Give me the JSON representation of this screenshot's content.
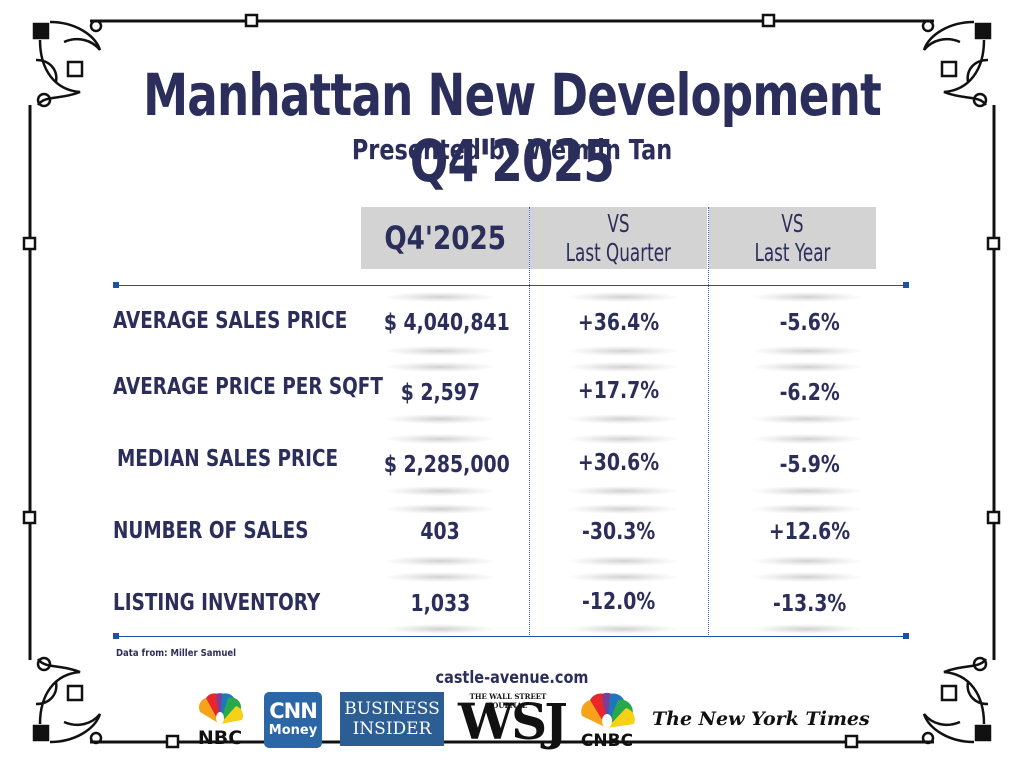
{
  "title": "Manhattan New Development Q4'2025",
  "subtitle": "Presented by Weimin Tan",
  "table": {
    "headers": {
      "current": "Q4'2025",
      "vs_quarter_line1": "VS",
      "vs_quarter_line2": "Last Quarter",
      "vs_year_line1": "VS",
      "vs_year_line2": "Last Year"
    },
    "rows": [
      {
        "label": "AVERAGE SALES PRICE",
        "value": "$ 4,040,841",
        "vs_quarter": "+36.4%",
        "vs_year": "-5.6%"
      },
      {
        "label": "AVERAGE PRICE PER SQFT",
        "value": "$ 2,597",
        "vs_quarter": "+17.7%",
        "vs_year": "-6.2%"
      },
      {
        "label": "MEDIAN SALES PRICE",
        "value": "$ 2,285,000",
        "vs_quarter": "+30.6%",
        "vs_year": "-5.9%"
      },
      {
        "label": "NUMBER OF SALES",
        "value": "403",
        "vs_quarter": "-30.3%",
        "vs_year": "+12.6%"
      },
      {
        "label": "LISTING INVENTORY",
        "value": "1,033",
        "vs_quarter": "-12.0%",
        "vs_year": "-13.3%"
      }
    ]
  },
  "source_note": "Data from: Miller Samuel",
  "website": "castle-avenue.com",
  "logos": {
    "nbc": "NBC",
    "cnn_line1": "CNN",
    "cnn_line2": "Money",
    "bi_line1": "BUSINESS",
    "bi_line2": "INSIDER",
    "wsj_top": "THE WALL STREET JOURNAL",
    "wsj": "WSJ",
    "cnbc": "CNBC",
    "nyt": "The New York Times"
  },
  "colors": {
    "text": "#2b2e5a",
    "header_bg": "#d3d3d3",
    "rule": "#1f4fa8"
  }
}
